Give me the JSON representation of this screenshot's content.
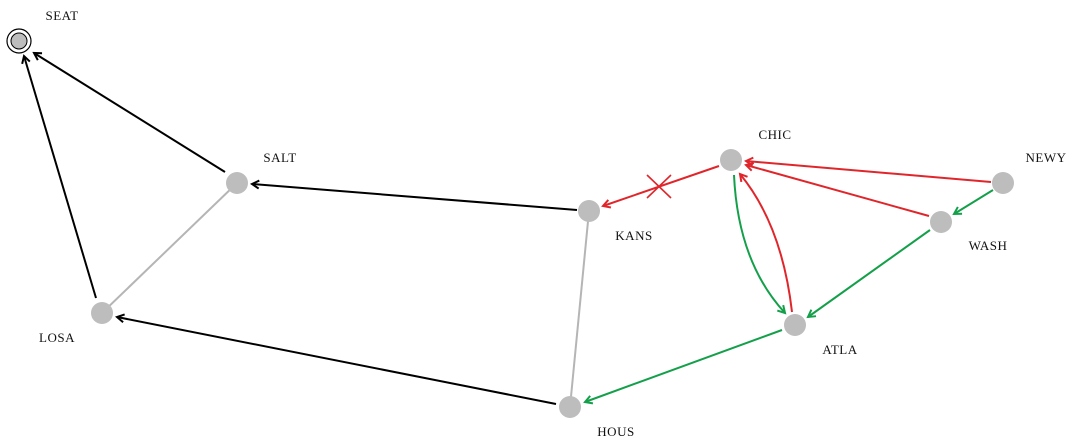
{
  "nodes": [
    {
      "label": "SEAT"
    },
    {
      "label": "SALT"
    },
    {
      "label": "LOSA"
    },
    {
      "label": "KANS"
    },
    {
      "label": "CHIC"
    },
    {
      "label": "NEWY"
    },
    {
      "label": "WASH"
    },
    {
      "label": "ATLA"
    },
    {
      "label": "HOUS"
    }
  ]
}
